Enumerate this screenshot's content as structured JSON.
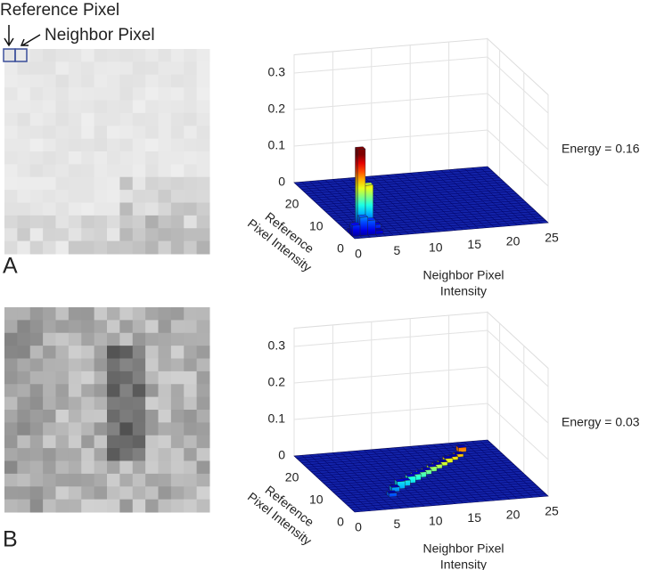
{
  "figure": {
    "reference_label": "Reference Pixel",
    "neighbor_label": "Neighbor Pixel"
  },
  "chart_data": [
    {
      "type": "bar3d",
      "panel": "A",
      "annotation": "Energy = 0.16",
      "x_label": [
        "Neighbor Pixel",
        "Intensity"
      ],
      "y_label": [
        "Reference",
        "Pixel Intensity"
      ],
      "x": [
        1,
        2,
        0,
        1,
        2,
        1,
        2,
        3,
        0,
        3
      ],
      "y": [
        2,
        2,
        1,
        1,
        1,
        3,
        3,
        2,
        2,
        1
      ],
      "values": [
        0.23,
        0.13,
        0.03,
        0.05,
        0.04,
        0.02,
        0.03,
        0.02,
        0.01,
        0.01
      ],
      "xlim": [
        0,
        25
      ],
      "ylim": [
        0,
        25
      ],
      "zlim": [
        0,
        0.35
      ],
      "xticks": [
        0,
        5,
        10,
        15,
        20,
        25
      ],
      "yticks": [
        0,
        10,
        20
      ],
      "zticks": [
        0,
        0.1,
        0.2,
        0.3
      ]
    },
    {
      "type": "bar3d",
      "panel": "B",
      "annotation": "Energy = 0.03",
      "x_label": [
        "Neighbor Pixel",
        "Intensity"
      ],
      "y_label": [
        "Reference",
        "Pixel Intensity"
      ],
      "x": [
        6,
        7,
        8,
        9,
        10,
        11,
        12,
        13,
        14,
        15,
        16,
        17,
        18,
        19,
        20
      ],
      "y": [
        5,
        7,
        8,
        9,
        10,
        11,
        12,
        13,
        14,
        15,
        16,
        17,
        18,
        19,
        21
      ],
      "values": [
        0.01,
        0.012,
        0.02,
        0.015,
        0.018,
        0.016,
        0.014,
        0.012,
        0.013,
        0.011,
        0.01,
        0.012,
        0.009,
        0.008,
        0.012
      ],
      "xlim": [
        0,
        25
      ],
      "ylim": [
        0,
        25
      ],
      "zlim": [
        0,
        0.35
      ],
      "xticks": [
        0,
        5,
        10,
        15,
        20,
        25
      ],
      "yticks": [
        0,
        10,
        20
      ],
      "zticks": [
        0,
        0.1,
        0.2,
        0.3
      ]
    }
  ]
}
